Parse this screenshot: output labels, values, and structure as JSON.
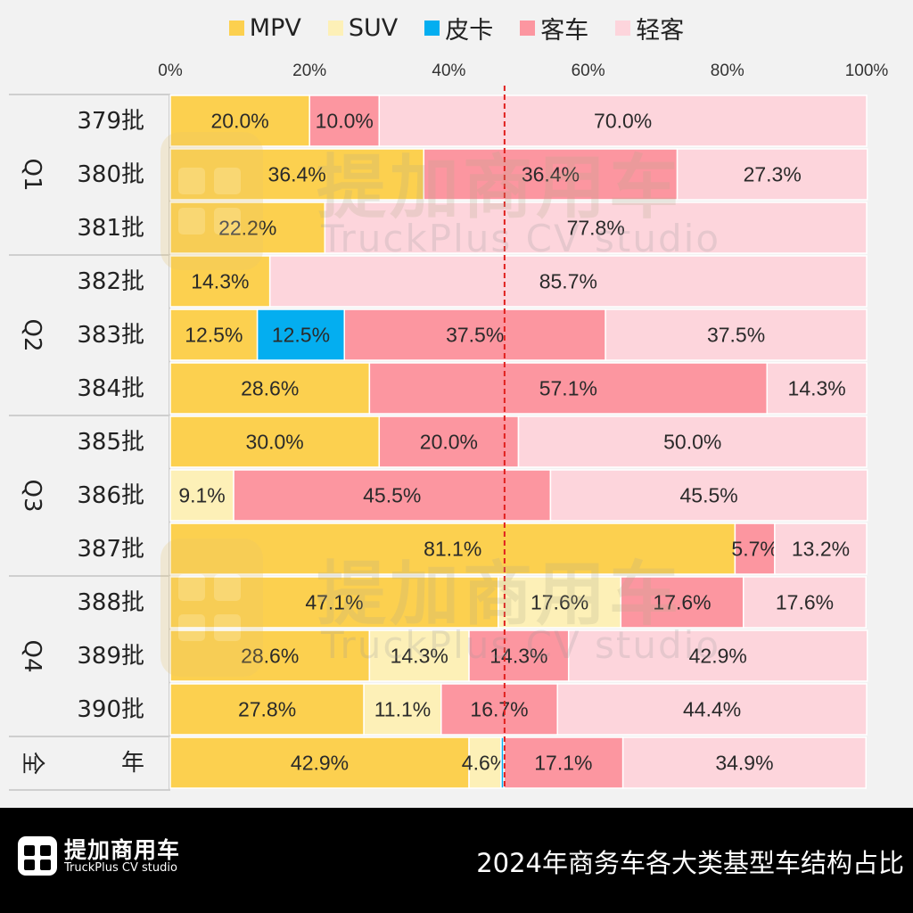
{
  "legend": [
    {
      "name": "MPV",
      "color": "#fcd04f"
    },
    {
      "name": "SUV",
      "color": "#fdf0b7"
    },
    {
      "name": "皮卡",
      "color": "#04aef0"
    },
    {
      "name": "客车",
      "color": "#fc96a0"
    },
    {
      "name": "轻客",
      "color": "#fdd5dc"
    }
  ],
  "footer": {
    "brand_cn": "提加商用车",
    "brand_en": "TruckPlus CV studio",
    "title": "2024年商务车各大类基型车结构占比"
  },
  "watermark": {
    "cn": "提加商用车",
    "en": "TruckPlus CV studio"
  },
  "chart_data": {
    "type": "bar",
    "orientation": "horizontal",
    "stacked": "percent",
    "title": "",
    "xlim": [
      0,
      100
    ],
    "x_ticks": [
      "0%",
      "20%",
      "40%",
      "60%",
      "80%",
      "100%"
    ],
    "reference_line": 48,
    "series_names": [
      "MPV",
      "SUV",
      "皮卡",
      "客车",
      "轻客"
    ],
    "colors": [
      "#fcd04f",
      "#fdf0b7",
      "#04aef0",
      "#fc96a0",
      "#fdd5dc"
    ],
    "groups": [
      {
        "label": "Q1",
        "rows": [
          {
            "label": "379批",
            "values": [
              20.0,
              0,
              0,
              10.0,
              70.0
            ],
            "labels": [
              "20.0%",
              "",
              "",
              "10.0%",
              "70.0%"
            ]
          },
          {
            "label": "380批",
            "values": [
              36.4,
              0,
              0,
              36.4,
              27.3
            ],
            "labels": [
              "36.4%",
              "",
              "",
              "36.4%",
              "27.3%"
            ]
          },
          {
            "label": "381批",
            "values": [
              22.2,
              0,
              0,
              0,
              77.8
            ],
            "labels": [
              "22.2%",
              "",
              "",
              "",
              "77.8%"
            ]
          }
        ]
      },
      {
        "label": "Q2",
        "rows": [
          {
            "label": "382批",
            "values": [
              14.3,
              0,
              0,
              0,
              85.7
            ],
            "labels": [
              "14.3%",
              "",
              "",
              "",
              "85.7%"
            ]
          },
          {
            "label": "383批",
            "values": [
              12.5,
              0,
              12.5,
              37.5,
              37.5
            ],
            "labels": [
              "12.5%",
              "",
              "12.5%",
              "37.5%",
              "37.5%"
            ]
          },
          {
            "label": "384批",
            "values": [
              28.6,
              0,
              0,
              57.1,
              14.3
            ],
            "labels": [
              "28.6%",
              "",
              "",
              "57.1%",
              "14.3%"
            ]
          }
        ]
      },
      {
        "label": "Q3",
        "rows": [
          {
            "label": "385批",
            "values": [
              30.0,
              0,
              0,
              20.0,
              50.0
            ],
            "labels": [
              "30.0%",
              "",
              "",
              "20.0%",
              "50.0%"
            ]
          },
          {
            "label": "386批",
            "values": [
              0,
              9.1,
              0,
              45.5,
              45.5
            ],
            "labels": [
              "",
              "9.1%",
              "",
              "45.5%",
              "45.5%"
            ]
          },
          {
            "label": "387批",
            "values": [
              81.1,
              0,
              0,
              5.7,
              13.2
            ],
            "labels": [
              "81.1%",
              "",
              "",
              "5.7%",
              "13.2%"
            ]
          }
        ]
      },
      {
        "label": "Q4",
        "rows": [
          {
            "label": "388批",
            "values": [
              47.1,
              17.6,
              0,
              17.6,
              17.6
            ],
            "labels": [
              "47.1%",
              "17.6%",
              "",
              "17.6%",
              "17.6%"
            ]
          },
          {
            "label": "389批",
            "values": [
              28.6,
              14.3,
              0,
              14.3,
              42.9
            ],
            "labels": [
              "28.6%",
              "14.3%",
              "",
              "14.3%",
              "42.9%"
            ]
          },
          {
            "label": "390批",
            "values": [
              27.8,
              11.1,
              0,
              16.7,
              44.4
            ],
            "labels": [
              "27.8%",
              "11.1%",
              "",
              "16.7%",
              "44.4%"
            ]
          }
        ]
      },
      {
        "label": "全",
        "rows": [
          {
            "label": "年",
            "values": [
              42.9,
              4.6,
              0.4,
              17.1,
              34.9
            ],
            "labels": [
              "42.9%",
              "4.6%",
              "",
              "17.1%",
              "34.9%"
            ]
          }
        ]
      }
    ]
  }
}
